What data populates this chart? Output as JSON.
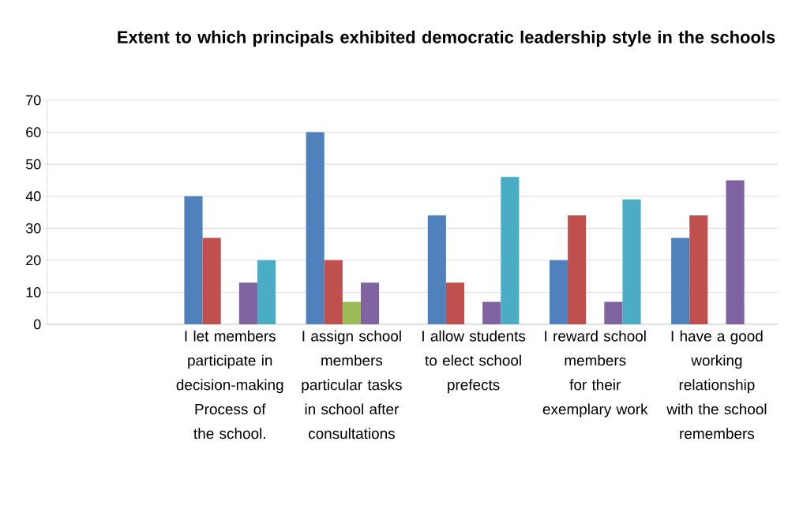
{
  "chart_data": {
    "type": "bar",
    "title": "Extent to which principals exhibited democratic leadership style in the schools",
    "categories": [
      null,
      "I let members participate in decision-making Process of the school.",
      "I assign school members particular tasks in school after consultations",
      "I allow students to elect school prefects",
      "I reward school members for their exemplary work",
      "I have a good working relationship with the school remembers"
    ],
    "series": [
      {
        "color": "#4f81bd",
        "values": [
          0,
          40,
          60,
          34,
          20,
          27
        ]
      },
      {
        "color": "#c0504d",
        "values": [
          0,
          27,
          20,
          13,
          34,
          34
        ]
      },
      {
        "color": "#9bbb59",
        "values": [
          0,
          0,
          7,
          0,
          0,
          0
        ]
      },
      {
        "color": "#8064a2",
        "values": [
          0,
          13,
          13,
          7,
          7,
          45
        ]
      },
      {
        "color": "#4bacc6",
        "values": [
          0,
          20,
          0,
          46,
          39,
          0
        ]
      }
    ],
    "ylim": [
      0,
      70
    ],
    "yticks": [
      0,
      10,
      20,
      30,
      40,
      50,
      60,
      70
    ],
    "grid": "y"
  }
}
